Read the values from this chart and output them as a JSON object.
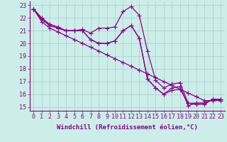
{
  "title": "",
  "xlabel": "Windchill (Refroidissement éolien,°C)",
  "ylabel": "",
  "background_color": "#cceee8",
  "line_color": "#880088",
  "grid_color": "#aacccc",
  "xlim": [
    -0.5,
    23.5
  ],
  "ylim": [
    14.7,
    23.3
  ],
  "yticks": [
    15,
    16,
    17,
    18,
    19,
    20,
    21,
    22,
    23
  ],
  "xticks": [
    0,
    1,
    2,
    3,
    4,
    5,
    6,
    7,
    8,
    9,
    10,
    11,
    12,
    13,
    14,
    15,
    16,
    17,
    18,
    19,
    20,
    21,
    22,
    23
  ],
  "series": [
    [
      22.7,
      22.0,
      21.5,
      21.3,
      21.0,
      21.0,
      21.1,
      20.8,
      21.2,
      21.2,
      21.3,
      22.5,
      22.9,
      22.2,
      19.4,
      17.1,
      16.5,
      16.8,
      16.9,
      15.3,
      15.2,
      15.2,
      15.6,
      15.6
    ],
    [
      22.7,
      21.9,
      21.4,
      21.2,
      21.0,
      21.0,
      21.0,
      20.3,
      20.0,
      20.0,
      20.2,
      21.0,
      21.4,
      20.4,
      17.2,
      16.5,
      16.0,
      16.5,
      16.6,
      15.1,
      15.3,
      15.3,
      15.6,
      15.6
    ],
    [
      22.7,
      21.9,
      21.4,
      21.2,
      21.0,
      21.0,
      21.0,
      20.3,
      20.0,
      20.0,
      20.2,
      21.0,
      21.4,
      20.4,
      17.2,
      16.5,
      16.0,
      16.3,
      16.4,
      15.3,
      15.3,
      15.3,
      15.6,
      15.6
    ],
    [
      22.7,
      21.7,
      21.2,
      20.9,
      20.6,
      20.3,
      20.0,
      19.7,
      19.4,
      19.1,
      18.8,
      18.5,
      18.2,
      17.9,
      17.6,
      17.3,
      17.0,
      16.7,
      16.4,
      16.1,
      15.8,
      15.5,
      15.5,
      15.5
    ]
  ],
  "marker": "+",
  "markersize": 4,
  "linewidth": 0.9,
  "xlabel_fontsize": 6.5,
  "tick_fontsize": 6.0
}
